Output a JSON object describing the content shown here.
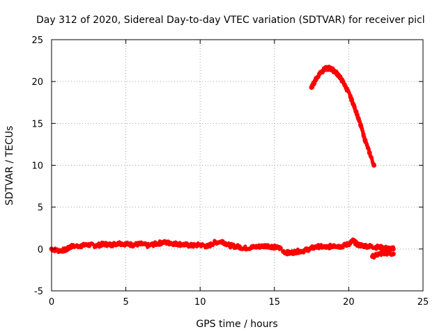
{
  "chart_data": {
    "type": "scatter",
    "title": "Day 312 of 2020, Sidereal Day-to-day VTEC variation (SDTVAR) for receiver picl",
    "xlabel": "GPS time / hours",
    "ylabel": "SDTVAR / TECUs",
    "xlim": [
      0,
      25
    ],
    "ylim": [
      -5,
      25
    ],
    "xticks": [
      0,
      5,
      10,
      15,
      20,
      25
    ],
    "yticks": [
      -5,
      0,
      5,
      10,
      15,
      20,
      25
    ],
    "grid": true,
    "series": [
      {
        "name": "SDTVAR",
        "color": "#ff0000",
        "segments": [
          {
            "x": [
              0.0,
              0.5,
              1.0,
              1.3,
              2.0,
              2.5,
              3.0,
              3.5,
              4.0,
              4.5,
              5.0,
              5.5,
              6.0,
              6.5,
              7.0,
              7.5,
              8.0,
              8.5,
              9.0,
              9.5,
              10.0,
              10.5,
              11.0,
              11.5,
              12.0,
              12.5,
              13.0,
              13.5,
              14.0,
              14.5,
              15.0,
              15.4
            ],
            "y": [
              0.0,
              -0.2,
              -0.1,
              0.3,
              0.4,
              0.5,
              0.4,
              0.6,
              0.5,
              0.7,
              0.6,
              0.5,
              0.6,
              0.4,
              0.6,
              0.8,
              0.7,
              0.6,
              0.5,
              0.4,
              0.5,
              0.3,
              0.8,
              0.9,
              0.4,
              0.3,
              0.1,
              0.2,
              0.3,
              0.4,
              0.2,
              0.1
            ]
          },
          {
            "x": [
              15.6,
              16.0,
              16.5,
              17.0,
              17.5,
              18.0,
              18.5,
              19.0,
              19.5,
              20.0,
              20.3,
              20.6,
              21.0,
              21.5,
              22.0,
              22.5,
              23.0
            ],
            "y": [
              -0.3,
              -0.5,
              -0.3,
              -0.2,
              0.1,
              0.3,
              0.2,
              0.4,
              0.3,
              0.6,
              1.0,
              0.5,
              0.4,
              0.3,
              0.2,
              0.1,
              0.0
            ]
          },
          {
            "x": [
              21.6,
              22.0,
              22.5,
              23.0
            ],
            "y": [
              -0.9,
              -0.6,
              -0.5,
              -0.6
            ]
          },
          {
            "x": [
              17.5,
              17.8,
              18.1,
              18.4,
              18.7,
              19.0,
              19.3,
              19.6,
              19.9,
              20.2,
              20.5,
              20.8,
              21.1,
              21.4,
              21.7
            ],
            "y": [
              19.3,
              20.3,
              21.1,
              21.5,
              21.6,
              21.3,
              20.8,
              20.0,
              19.0,
              17.8,
              16.4,
              14.8,
              13.0,
              11.5,
              10.0
            ]
          }
        ]
      }
    ]
  }
}
